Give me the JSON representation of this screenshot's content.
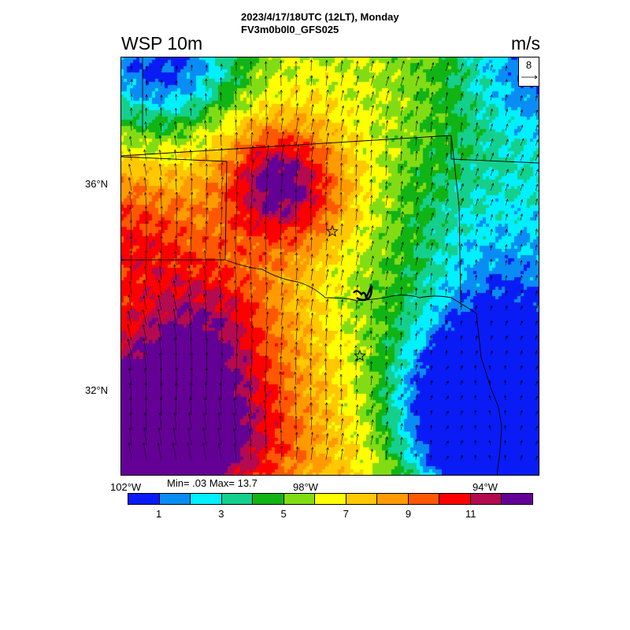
{
  "header": {
    "line1": "2023/4/17/18UTC (12LT), Monday",
    "line2": "FV3m0b0l0_GFS025"
  },
  "variable": "WSP 10m",
  "units": "m/s",
  "reference_vector": {
    "label": "8",
    "value": 8
  },
  "stats": {
    "label": "Min= .03 Max= 13.7",
    "min": 0.03,
    "max": 13.7
  },
  "axes": {
    "lat_labels": [
      "36°N",
      "32°N"
    ],
    "lon_labels": [
      "102°W",
      "98°W",
      "94°W"
    ]
  },
  "colorbar": {
    "colors": [
      "#0a1cf5",
      "#0a8cf5",
      "#00f0ff",
      "#14d08c",
      "#10b414",
      "#82dc14",
      "#ffff00",
      "#ffc800",
      "#ff9a00",
      "#ff5800",
      "#ff0000",
      "#b40a50",
      "#640096"
    ],
    "tick_labels": [
      "1",
      "3",
      "5",
      "7",
      "9",
      "11"
    ]
  },
  "map": {
    "field_description_levels": "wind speed shaded 0-13.7 m/s",
    "stars": 2,
    "region": "Oklahoma / Texas"
  }
}
